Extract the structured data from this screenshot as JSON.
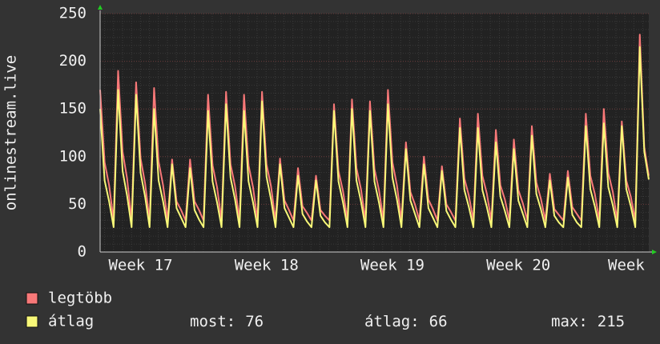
{
  "chart_data": {
    "type": "line",
    "y_label": "onlinestream.live",
    "categories": [
      null,
      null,
      null,
      null,
      null,
      null,
      null,
      null,
      null,
      "Week 17",
      null,
      null,
      null,
      null,
      null,
      null,
      null,
      null,
      null,
      null,
      null,
      null,
      null,
      null,
      null,
      null,
      null,
      null,
      null,
      null,
      null,
      null,
      null,
      null,
      null,
      null,
      null,
      "Week 18",
      null,
      null,
      null,
      null,
      null,
      null,
      null,
      null,
      null,
      null,
      null,
      null,
      null,
      null,
      null,
      null,
      null,
      null,
      null,
      null,
      null,
      null,
      null,
      null,
      null,
      null,
      null,
      "Week 19",
      null,
      null,
      null,
      null,
      null,
      null,
      null,
      null,
      null,
      null,
      null,
      null,
      null,
      null,
      null,
      null,
      null,
      null,
      null,
      null,
      null,
      null,
      null,
      null,
      null,
      null,
      null,
      "Week 20",
      null,
      null,
      null,
      null,
      null,
      null,
      null,
      null,
      null,
      null,
      null,
      null,
      null,
      null,
      null,
      null,
      null,
      null,
      null,
      null,
      null,
      null,
      null,
      "Week",
      null,
      null,
      null,
      null,
      null
    ],
    "series": [
      {
        "name": "legtöbb",
        "color": "#f87878",
        "values": [
          170,
          94,
          70,
          33,
          190,
          105,
          77,
          33,
          178,
          98,
          72,
          33,
          172,
          95,
          70,
          33,
          97,
          53,
          44,
          33,
          97,
          53,
          44,
          33,
          165,
          91,
          68,
          33,
          168,
          92,
          69,
          33,
          165,
          91,
          68,
          33,
          168,
          92,
          69,
          33,
          98,
          54,
          44,
          33,
          88,
          48,
          41,
          33,
          80,
          44,
          38,
          33,
          155,
          85,
          64,
          33,
          160,
          88,
          66,
          33,
          158,
          87,
          65,
          33,
          170,
          94,
          70,
          33,
          115,
          63,
          50,
          33,
          100,
          55,
          45,
          33,
          90,
          50,
          42,
          33,
          140,
          77,
          59,
          33,
          145,
          80,
          61,
          33,
          128,
          70,
          55,
          33,
          118,
          65,
          51,
          33,
          132,
          73,
          56,
          33,
          82,
          45,
          39,
          33,
          85,
          47,
          40,
          33,
          145,
          80,
          61,
          33,
          150,
          83,
          63,
          33,
          137,
          75,
          58,
          33,
          228,
          110,
          80
        ]
      },
      {
        "name": "átlag",
        "color": "#f8f878",
        "values": [
          150,
          75,
          53,
          26,
          170,
          85,
          59,
          26,
          165,
          83,
          58,
          26,
          150,
          75,
          53,
          26,
          92,
          46,
          36,
          26,
          88,
          44,
          34,
          26,
          148,
          74,
          52,
          26,
          155,
          78,
          55,
          26,
          148,
          74,
          52,
          26,
          158,
          79,
          55,
          26,
          92,
          46,
          36,
          26,
          80,
          40,
          32,
          26,
          75,
          38,
          31,
          26,
          148,
          74,
          52,
          26,
          150,
          75,
          53,
          26,
          148,
          74,
          52,
          26,
          155,
          78,
          55,
          26,
          108,
          54,
          40,
          26,
          92,
          46,
          36,
          26,
          85,
          43,
          34,
          26,
          130,
          65,
          47,
          26,
          130,
          65,
          47,
          26,
          115,
          58,
          43,
          26,
          108,
          54,
          40,
          26,
          122,
          61,
          45,
          26,
          75,
          38,
          31,
          26,
          78,
          39,
          31,
          26,
          132,
          66,
          48,
          26,
          135,
          68,
          49,
          26,
          132,
          66,
          48,
          26,
          215,
          105,
          76
        ]
      }
    ],
    "ylim": [
      0,
      250
    ],
    "yticks": [
      0,
      50,
      100,
      150,
      200,
      250
    ],
    "grid": true,
    "stats": [
      {
        "label": "most:",
        "value": 76
      },
      {
        "label": "átlag:",
        "value": 66
      },
      {
        "label": "max:",
        "value": 215
      }
    ]
  }
}
